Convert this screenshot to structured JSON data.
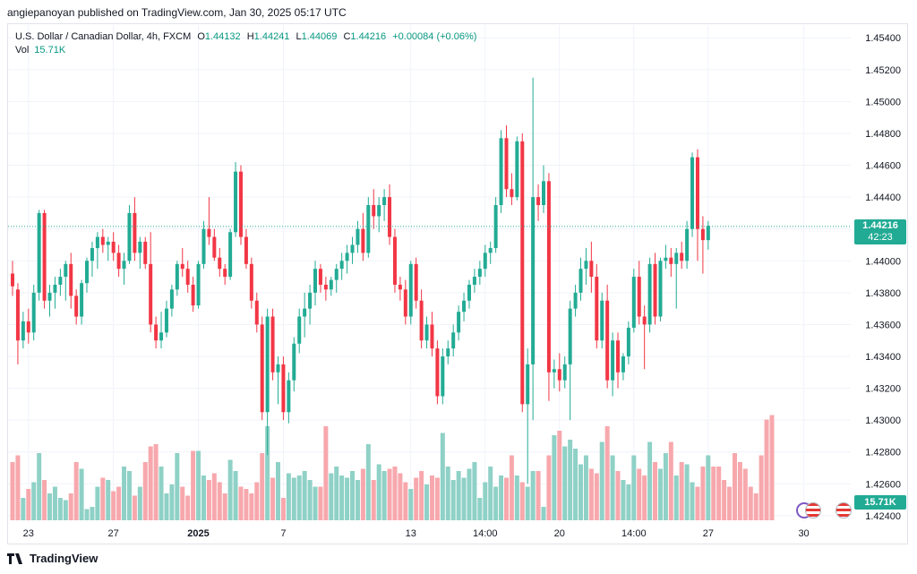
{
  "publish_line": "angiepanoyan published on TradingView.com, Jan 30, 2025 05:17 UTC",
  "legend": {
    "symbol": "U.S. Dollar / Canadian Dollar, 4h, FXCM",
    "o_label": "O",
    "o_value": "1.44132",
    "h_label": "H",
    "h_value": "1.44241",
    "l_label": "L",
    "l_value": "1.44069",
    "c_label": "C",
    "c_value": "1.44216",
    "change": "+0.00084 (+0.06%)",
    "vol_label": "Vol",
    "vol_value": "15.71K"
  },
  "price_badge": {
    "price": "1.44216",
    "countdown": "42:23"
  },
  "vol_badge": "15.71K",
  "footer_brand": "TradingView",
  "colors": {
    "up": "#22ab94",
    "down": "#f23645",
    "vol_up": "#8fd1c6",
    "vol_down": "#f7a8ad",
    "grid": "#f0f3fa"
  },
  "chart_data": {
    "type": "candlestick",
    "title": "U.S. Dollar / Canadian Dollar, 4h, FXCM",
    "ylim": [
      1.4236,
      1.4548
    ],
    "y_ticks": [
      "1.45400",
      "1.45200",
      "1.45000",
      "1.44800",
      "1.44600",
      "1.44400",
      "1.44200",
      "1.44000",
      "1.43800",
      "1.43600",
      "1.43400",
      "1.43200",
      "1.43000",
      "1.42800",
      "1.42600",
      "1.42400"
    ],
    "x_labels": [
      {
        "label": "23",
        "index": 3
      },
      {
        "label": "27",
        "index": 19
      },
      {
        "label": "2025",
        "index": 35
      },
      {
        "label": "7",
        "index": 51
      },
      {
        "label": "13",
        "index": 75
      },
      {
        "label": "14:00",
        "index": 89
      },
      {
        "label": "20",
        "index": 103
      },
      {
        "label": "14:00",
        "index": 117
      },
      {
        "label": "27",
        "index": 131
      },
      {
        "label": "30",
        "index": 149
      }
    ],
    "last_price": 1.44216,
    "candles": [
      [
        1.4392,
        1.44,
        1.4378,
        1.4384
      ],
      [
        1.4382,
        1.4386,
        1.4335,
        1.435
      ],
      [
        1.435,
        1.4368,
        1.4345,
        1.4362
      ],
      [
        1.4362,
        1.437,
        1.4348,
        1.4355
      ],
      [
        1.4355,
        1.4385,
        1.435,
        1.438
      ],
      [
        1.438,
        1.4432,
        1.4375,
        1.443
      ],
      [
        1.443,
        1.4432,
        1.437,
        1.4375
      ],
      [
        1.4375,
        1.4385,
        1.4365,
        1.438
      ],
      [
        1.438,
        1.439,
        1.437,
        1.4385
      ],
      [
        1.4385,
        1.4395,
        1.4378,
        1.439
      ],
      [
        1.439,
        1.44,
        1.4375,
        1.4398
      ],
      [
        1.4398,
        1.4405,
        1.437,
        1.4378
      ],
      [
        1.4378,
        1.4382,
        1.436,
        1.4365
      ],
      [
        1.4365,
        1.4388,
        1.436,
        1.4386
      ],
      [
        1.4386,
        1.4402,
        1.438,
        1.44
      ],
      [
        1.44,
        1.4412,
        1.439,
        1.4408
      ],
      [
        1.4408,
        1.4418,
        1.4395,
        1.4415
      ],
      [
        1.4415,
        1.442,
        1.4405,
        1.441
      ],
      [
        1.441,
        1.4415,
        1.44,
        1.4412
      ],
      [
        1.4412,
        1.4418,
        1.44,
        1.4405
      ],
      [
        1.4405,
        1.441,
        1.439,
        1.4395
      ],
      [
        1.4395,
        1.4405,
        1.4385,
        1.44
      ],
      [
        1.44,
        1.4435,
        1.4398,
        1.443
      ],
      [
        1.443,
        1.444,
        1.44,
        1.4405
      ],
      [
        1.4405,
        1.4415,
        1.4395,
        1.4412
      ],
      [
        1.4412,
        1.4415,
        1.4395,
        1.4398
      ],
      [
        1.4398,
        1.4418,
        1.4355,
        1.436
      ],
      [
        1.436,
        1.4365,
        1.4345,
        1.435
      ],
      [
        1.435,
        1.4368,
        1.4345,
        1.4355
      ],
      [
        1.4355,
        1.4375,
        1.4352,
        1.437
      ],
      [
        1.437,
        1.4385,
        1.4365,
        1.4382
      ],
      [
        1.4382,
        1.44,
        1.4378,
        1.4398
      ],
      [
        1.4398,
        1.4408,
        1.439,
        1.4395
      ],
      [
        1.4395,
        1.44,
        1.438,
        1.4385
      ],
      [
        1.4385,
        1.439,
        1.4368,
        1.4372
      ],
      [
        1.4372,
        1.44,
        1.437,
        1.4398
      ],
      [
        1.4398,
        1.4425,
        1.4395,
        1.442
      ],
      [
        1.442,
        1.444,
        1.441,
        1.4415
      ],
      [
        1.4415,
        1.442,
        1.44,
        1.4402
      ],
      [
        1.4402,
        1.4408,
        1.439,
        1.4395
      ],
      [
        1.4395,
        1.4398,
        1.4385,
        1.439
      ],
      [
        1.439,
        1.442,
        1.4388,
        1.4418
      ],
      [
        1.4418,
        1.4462,
        1.4415,
        1.4456
      ],
      [
        1.4456,
        1.446,
        1.441,
        1.4415
      ],
      [
        1.4415,
        1.442,
        1.4395,
        1.4398
      ],
      [
        1.4398,
        1.4402,
        1.437,
        1.4375
      ],
      [
        1.4375,
        1.438,
        1.4355,
        1.436
      ],
      [
        1.436,
        1.4365,
        1.43,
        1.4305
      ],
      [
        1.4305,
        1.437,
        1.4278,
        1.4365
      ],
      [
        1.4365,
        1.437,
        1.4325,
        1.433
      ],
      [
        1.433,
        1.434,
        1.431,
        1.4335
      ],
      [
        1.4335,
        1.434,
        1.43,
        1.4305
      ],
      [
        1.4305,
        1.433,
        1.4298,
        1.4325
      ],
      [
        1.4325,
        1.4352,
        1.4318,
        1.4348
      ],
      [
        1.4348,
        1.437,
        1.4342,
        1.4365
      ],
      [
        1.4365,
        1.438,
        1.4352,
        1.437
      ],
      [
        1.437,
        1.4385,
        1.436,
        1.438
      ],
      [
        1.438,
        1.44,
        1.4372,
        1.4395
      ],
      [
        1.4395,
        1.4398,
        1.438,
        1.4385
      ],
      [
        1.4385,
        1.439,
        1.4375,
        1.4382
      ],
      [
        1.4382,
        1.439,
        1.4378,
        1.4388
      ],
      [
        1.4388,
        1.4398,
        1.438,
        1.4395
      ],
      [
        1.4395,
        1.4405,
        1.4388,
        1.44
      ],
      [
        1.44,
        1.441,
        1.4392,
        1.4405
      ],
      [
        1.4405,
        1.4415,
        1.4398,
        1.441
      ],
      [
        1.441,
        1.4425,
        1.4405,
        1.442
      ],
      [
        1.442,
        1.443,
        1.44,
        1.4405
      ],
      [
        1.4405,
        1.444,
        1.4402,
        1.4435
      ],
      [
        1.4435,
        1.4445,
        1.442,
        1.4428
      ],
      [
        1.4428,
        1.444,
        1.4418,
        1.4435
      ],
      [
        1.4435,
        1.4445,
        1.4425,
        1.444
      ],
      [
        1.444,
        1.4448,
        1.441,
        1.4415
      ],
      [
        1.4415,
        1.442,
        1.438,
        1.4385
      ],
      [
        1.4385,
        1.439,
        1.4375,
        1.4382
      ],
      [
        1.4382,
        1.4388,
        1.436,
        1.4365
      ],
      [
        1.4365,
        1.44,
        1.436,
        1.4398
      ],
      [
        1.4398,
        1.4402,
        1.437,
        1.4375
      ],
      [
        1.4375,
        1.4382,
        1.4345,
        1.435
      ],
      [
        1.435,
        1.4365,
        1.4345,
        1.436
      ],
      [
        1.436,
        1.4368,
        1.434,
        1.4345
      ],
      [
        1.4345,
        1.435,
        1.431,
        1.4315
      ],
      [
        1.4315,
        1.4345,
        1.431,
        1.434
      ],
      [
        1.434,
        1.435,
        1.4335,
        1.4345
      ],
      [
        1.4345,
        1.436,
        1.434,
        1.4355
      ],
      [
        1.4355,
        1.4372,
        1.435,
        1.4368
      ],
      [
        1.4368,
        1.438,
        1.4362,
        1.4375
      ],
      [
        1.4375,
        1.4388,
        1.437,
        1.4385
      ],
      [
        1.4385,
        1.4395,
        1.438,
        1.439
      ],
      [
        1.439,
        1.44,
        1.4385,
        1.4395
      ],
      [
        1.4395,
        1.441,
        1.439,
        1.4405
      ],
      [
        1.4405,
        1.4412,
        1.4398,
        1.4408
      ],
      [
        1.4408,
        1.444,
        1.4405,
        1.4435
      ],
      [
        1.4435,
        1.4482,
        1.443,
        1.4477
      ],
      [
        1.4477,
        1.4485,
        1.444,
        1.4445
      ],
      [
        1.4445,
        1.4455,
        1.4435,
        1.444
      ],
      [
        1.444,
        1.4478,
        1.4438,
        1.4475
      ],
      [
        1.4475,
        1.448,
        1.4305,
        1.431
      ],
      [
        1.431,
        1.4345,
        1.426,
        1.4335
      ],
      [
        1.4335,
        1.4515,
        1.43,
        1.444
      ],
      [
        1.444,
        1.4448,
        1.4425,
        1.4435
      ],
      [
        1.4435,
        1.446,
        1.443,
        1.445
      ],
      [
        1.445,
        1.4455,
        1.4312,
        1.433
      ],
      [
        1.433,
        1.4338,
        1.432,
        1.4332
      ],
      [
        1.4332,
        1.4342,
        1.4318,
        1.4325
      ],
      [
        1.4325,
        1.434,
        1.432,
        1.4335
      ],
      [
        1.4335,
        1.4375,
        1.43,
        1.437
      ],
      [
        1.437,
        1.4385,
        1.4365,
        1.438
      ],
      [
        1.438,
        1.4402,
        1.4375,
        1.4395
      ],
      [
        1.4395,
        1.4408,
        1.4385,
        1.44
      ],
      [
        1.44,
        1.4412,
        1.438,
        1.439
      ],
      [
        1.439,
        1.4398,
        1.4345,
        1.435
      ],
      [
        1.435,
        1.438,
        1.4345,
        1.4375
      ],
      [
        1.4375,
        1.4385,
        1.432,
        1.4325
      ],
      [
        1.4325,
        1.4355,
        1.4315,
        1.435
      ],
      [
        1.435,
        1.4355,
        1.432,
        1.433
      ],
      [
        1.433,
        1.4342,
        1.4325,
        1.434
      ],
      [
        1.434,
        1.4362,
        1.4335,
        1.4358
      ],
      [
        1.4358,
        1.4395,
        1.4355,
        1.439
      ],
      [
        1.439,
        1.44,
        1.436,
        1.4365
      ],
      [
        1.4365,
        1.4372,
        1.4332,
        1.436
      ],
      [
        1.436,
        1.4402,
        1.4355,
        1.4398
      ],
      [
        1.4398,
        1.4405,
        1.436,
        1.4365
      ],
      [
        1.4365,
        1.4402,
        1.4362,
        1.44
      ],
      [
        1.44,
        1.441,
        1.4395,
        1.4402
      ],
      [
        1.4402,
        1.4408,
        1.439,
        1.4398
      ],
      [
        1.4398,
        1.4408,
        1.437,
        1.4405
      ],
      [
        1.4405,
        1.4412,
        1.4395,
        1.44
      ],
      [
        1.44,
        1.4425,
        1.4395,
        1.442
      ],
      [
        1.442,
        1.4468,
        1.4415,
        1.4465
      ],
      [
        1.4465,
        1.447,
        1.44,
        1.442
      ],
      [
        1.442,
        1.4428,
        1.4392,
        1.4413
      ],
      [
        1.4413,
        1.4425,
        1.4407,
        1.4422
      ]
    ],
    "volumes": [
      52,
      58,
      20,
      28,
      34,
      60,
      36,
      24,
      30,
      20,
      18,
      24,
      52,
      46,
      10,
      12,
      30,
      38,
      36,
      26,
      30,
      48,
      44,
      22,
      30,
      52,
      66,
      68,
      48,
      24,
      32,
      60,
      30,
      22,
      62,
      62,
      40,
      36,
      42,
      34,
      24,
      54,
      44,
      30,
      28,
      24,
      34,
      60,
      84,
      38,
      52,
      20,
      42,
      38,
      40,
      44,
      36,
      30,
      30,
      84,
      42,
      48,
      40,
      38,
      44,
      36,
      46,
      68,
      36,
      50,
      44,
      46,
      48,
      42,
      34,
      28,
      38,
      44,
      32,
      40,
      38,
      78,
      48,
      36,
      44,
      38,
      46,
      52,
      20,
      34,
      48,
      30,
      40,
      38,
      58,
      40,
      34,
      30,
      44,
      44,
      12,
      58,
      76,
      80,
      66,
      72,
      64,
      50,
      58,
      46,
      42,
      70,
      84,
      58,
      44,
      36,
      32,
      58,
      46,
      40,
      70,
      52,
      46,
      60,
      70,
      40,
      52,
      50,
      34,
      30,
      48,
      58,
      48,
      48,
      36,
      30,
      60,
      52,
      46,
      30,
      24,
      58,
      90,
      94
    ]
  }
}
